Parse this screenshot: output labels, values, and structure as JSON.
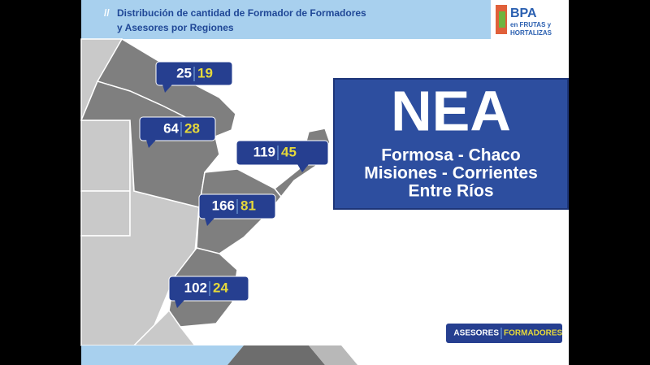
{
  "header": {
    "title_lines": [
      "Distribución de cantidad de Formador de Formadores",
      "y Asesores  por Regiones"
    ]
  },
  "logo": {
    "brand": "BPA",
    "tagline_lines": [
      "en FRUTAS y",
      "HORTALIZAS"
    ]
  },
  "callouts": [
    {
      "asesores": 25,
      "formadores": 19
    },
    {
      "asesores": 64,
      "formadores": 28
    },
    {
      "asesores": 119,
      "formadores": 45
    },
    {
      "asesores": 166,
      "formadores": 81
    },
    {
      "asesores": 102,
      "formadores": 24
    }
  ],
  "region": {
    "name": "NEA",
    "provinces_lines": [
      "Formosa - Chaco",
      "Misiones - Corrientes",
      "Entre Ríos"
    ]
  },
  "legend": {
    "asesores": "ASESORES",
    "formadores": "FORMADORES"
  }
}
